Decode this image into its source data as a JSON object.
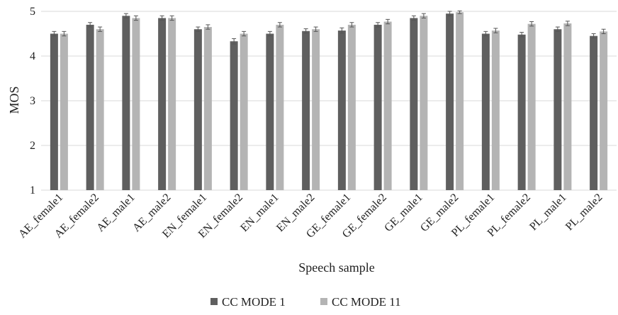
{
  "chart_data": {
    "type": "bar",
    "title": "",
    "xlabel": "Speech sample",
    "ylabel": "MOS",
    "ylim": [
      1,
      5
    ],
    "yticks": [
      1,
      2,
      3,
      4,
      5
    ],
    "grid": true,
    "legend_position": "bottom",
    "categories": [
      "AE_female1",
      "AE_female2",
      "AE_male1",
      "AE_male2",
      "EN_female1",
      "EN_female2",
      "EN_male1",
      "EN_male2",
      "GE_female1",
      "GE_female2",
      "GE_male1",
      "GE_male2",
      "PL_female1",
      "PL_female2",
      "PL_male1",
      "PL_male2"
    ],
    "series": [
      {
        "name": "CC MODE 1",
        "color": "#5f5f5f",
        "values": [
          4.5,
          4.7,
          4.9,
          4.85,
          4.6,
          4.33,
          4.5,
          4.56,
          4.57,
          4.7,
          4.85,
          4.95,
          4.5,
          4.48,
          4.6,
          4.45
        ],
        "errors": [
          0.05,
          0.05,
          0.05,
          0.05,
          0.05,
          0.06,
          0.05,
          0.05,
          0.06,
          0.05,
          0.05,
          0.05,
          0.05,
          0.05,
          0.05,
          0.05
        ]
      },
      {
        "name": "CC MODE 11",
        "color": "#b4b4b4",
        "values": [
          4.5,
          4.6,
          4.85,
          4.85,
          4.65,
          4.5,
          4.7,
          4.6,
          4.7,
          4.77,
          4.9,
          4.98,
          4.57,
          4.72,
          4.73,
          4.55
        ],
        "errors": [
          0.05,
          0.05,
          0.05,
          0.05,
          0.05,
          0.05,
          0.05,
          0.05,
          0.05,
          0.05,
          0.05,
          0.03,
          0.05,
          0.05,
          0.05,
          0.05
        ]
      }
    ],
    "error_bar_color": "#555555",
    "grid_color": "#d9d9d9"
  }
}
